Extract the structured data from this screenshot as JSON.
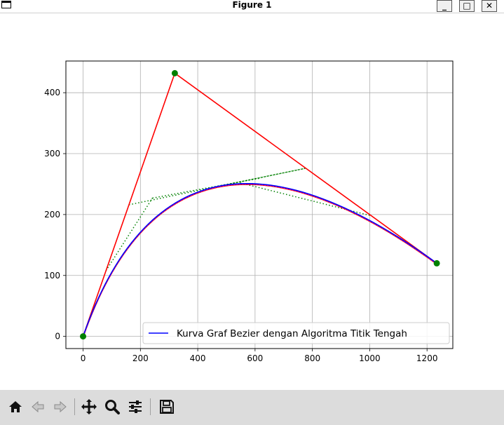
{
  "window": {
    "title": "Figure 1",
    "minimize_label": "_",
    "maximize_label": "□",
    "close_label": "✕"
  },
  "toolbar": {
    "buttons": [
      {
        "name": "home-icon",
        "tooltip": "Reset original view"
      },
      {
        "name": "back-icon",
        "tooltip": "Back to previous view"
      },
      {
        "name": "forward-icon",
        "tooltip": "Forward to next view"
      },
      {
        "name": "pan-icon",
        "tooltip": "Pan axes"
      },
      {
        "name": "zoom-icon",
        "tooltip": "Zoom to rectangle"
      },
      {
        "name": "configure-subplots-icon",
        "tooltip": "Configure subplots"
      },
      {
        "name": "save-icon",
        "tooltip": "Save the figure"
      }
    ]
  },
  "chart_data": {
    "type": "line",
    "title": "",
    "xlabel": "",
    "ylabel": "",
    "xlim": [
      -60,
      1290
    ],
    "ylim": [
      -20,
      452
    ],
    "xticks": [
      0,
      200,
      400,
      600,
      800,
      1000,
      1200
    ],
    "yticks": [
      0,
      100,
      200,
      300,
      400
    ],
    "grid": true,
    "legend_position": "lower-right",
    "legend": [
      "Kurva Graf Bezier dengan Algoritma Titik Tengah"
    ],
    "control_points": [
      [
        0,
        0
      ],
      [
        320,
        432
      ],
      [
        1234,
        120
      ]
    ],
    "control_polygon": {
      "color": "#ff0000",
      "points": [
        [
          0,
          0
        ],
        [
          320,
          432
        ],
        [
          1234,
          120
        ]
      ]
    },
    "construction_lines": {
      "color": "#008000",
      "style": "dotted",
      "segments": [
        [
          [
            160,
            216
          ],
          [
            777,
            276
          ]
        ],
        [
          [
            80,
            108
          ],
          [
            242,
            227
          ]
        ],
        [
          [
            548,
            252
          ],
          [
            1005,
            198
          ]
        ],
        [
          [
            468.5,
            246
          ],
          [
            777,
            276
          ]
        ],
        [
          [
            242,
            227
          ],
          [
            621,
            260
          ]
        ]
      ]
    },
    "series": [
      {
        "name": "Kurva Graf Bezier dengan Algoritma Titik Tengah",
        "color": "#0000ff",
        "kind": "quadratic-bezier",
        "control_points": [
          [
            0,
            0
          ],
          [
            320,
            432
          ],
          [
            1234,
            120
          ]
        ]
      },
      {
        "color": "#ff00ff",
        "kind": "quadratic-bezier",
        "control_points": [
          [
            0,
            0
          ],
          [
            320,
            432
          ],
          [
            1234,
            120
          ]
        ]
      },
      {
        "color": "#ff0000",
        "kind": "quadratic-bezier",
        "control_points": [
          [
            0,
            0
          ],
          [
            320,
            432
          ],
          [
            1234,
            120
          ]
        ]
      }
    ],
    "markers": {
      "color": "#008000",
      "points": [
        [
          0,
          0
        ],
        [
          320,
          432
        ],
        [
          1234,
          120
        ]
      ]
    }
  }
}
